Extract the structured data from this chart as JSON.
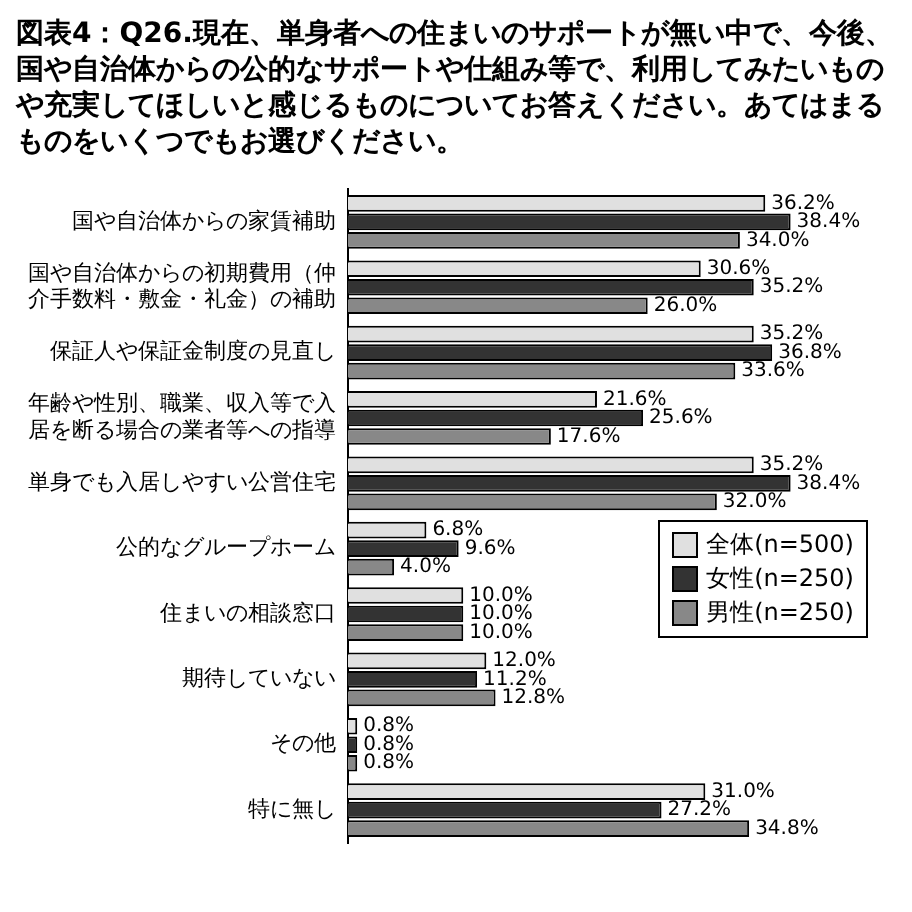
{
  "chart_data": {
    "type": "bar",
    "orientation": "horizontal",
    "title": "図表4：Q26.現在、単身者への住まいのサポートが無い中で、今後、国や自治体からの公的なサポートや仕組み等で、利用してみたいものや充実してほしいと感じるものについてお答えください。あてはまるものをいくつでもお選びください。",
    "categories": [
      "国や自治体からの家賃補助",
      "国や自治体からの初期費用（仲介手数料・敷金・礼金）の補助",
      "保証人や保証金制度の見直し",
      "年齢や性別、職業、収入等で入居を断る場合の業者等への指導",
      "単身でも入居しやすい公営住宅",
      "公的なグループホーム",
      "住まいの相談窓口",
      "期待していない",
      "その他",
      "特に無し"
    ],
    "series": [
      {
        "name": "全体(n=500)",
        "color": "#e0e0e0",
        "values": [
          36.2,
          30.6,
          35.2,
          21.6,
          35.2,
          6.8,
          10.0,
          12.0,
          0.8,
          31.0
        ],
        "value_labels": [
          "36.2%",
          "30.6%",
          "35.2%",
          "21.6%",
          "35.2%",
          "6.8%",
          "10.0%",
          "12.0%",
          "0.8%",
          "31.0%"
        ]
      },
      {
        "name": "女性(n=250)",
        "color": "#333333",
        "values": [
          38.4,
          35.2,
          36.8,
          25.6,
          38.4,
          9.6,
          10.0,
          11.2,
          0.8,
          27.2
        ],
        "value_labels": [
          "38.4%",
          "35.2%",
          "36.8%",
          "25.6%",
          "38.4%",
          "9.6%",
          "10.0%",
          "11.2%",
          "0.8%",
          "27.2%"
        ]
      },
      {
        "name": "男性(n=250)",
        "color": "#888888",
        "values": [
          34.0,
          26.0,
          33.6,
          17.6,
          32.0,
          4.0,
          10.0,
          12.8,
          0.8,
          34.8
        ],
        "value_labels": [
          "34.0%",
          "26.0%",
          "33.6%",
          "17.6%",
          "32.0%",
          "4.0%",
          "10.0%",
          "12.8%",
          "0.8%",
          "34.8%"
        ]
      }
    ],
    "legend": "right",
    "grid": false
  }
}
